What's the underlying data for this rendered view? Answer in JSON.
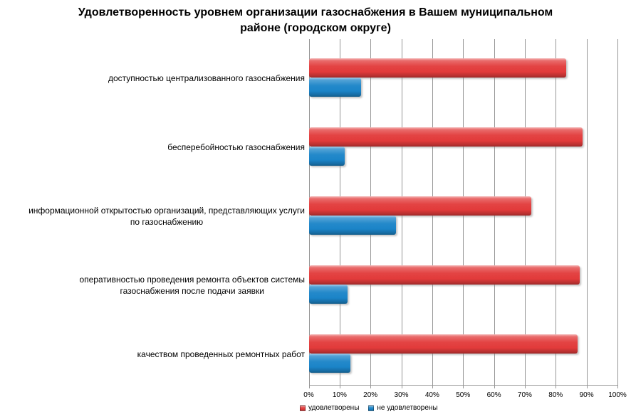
{
  "chart_data": {
    "type": "bar",
    "orientation": "horizontal",
    "title": "Удовлетворенность уровнем организации газоснабжения в Вашем муниципальном районе (городском округе)",
    "title_lines": [
      "Удовлетворенность уровнем организации газоснабжения в Вашем муниципальном",
      "районе (городском округе)"
    ],
    "categories": [
      [
        "доступностью централизованного газоснабжения"
      ],
      [
        "бесперебойностью газоснабжения"
      ],
      [
        "информационной открытостью организаций, представляющих услуги",
        "по газоснабжению"
      ],
      [
        "оперативностью проведения ремонта объектов системы",
        "газоснабжения после подачи заявки"
      ],
      [
        "качеством проведенных ремонтных работ"
      ]
    ],
    "series": [
      {
        "name": "удовлетворены",
        "color": "#e23b3b",
        "values": [
          83.5,
          88.8,
          72.0,
          87.8,
          87.0
        ]
      },
      {
        "name": "не удовлетворены",
        "color": "#1b84c8",
        "values": [
          17.0,
          11.7,
          28.2,
          12.6,
          13.4
        ]
      }
    ],
    "xlim": [
      0,
      100
    ],
    "x_tick_labels": [
      "0%",
      "10%",
      "20%",
      "30%",
      "40%",
      "50%",
      "60%",
      "70%",
      "80%",
      "90%",
      "100%"
    ],
    "grid": "vertical",
    "legend_position": "bottom",
    "colors": {
      "gridline": "#969696",
      "text": "#000000",
      "background": "#ffffff"
    }
  }
}
